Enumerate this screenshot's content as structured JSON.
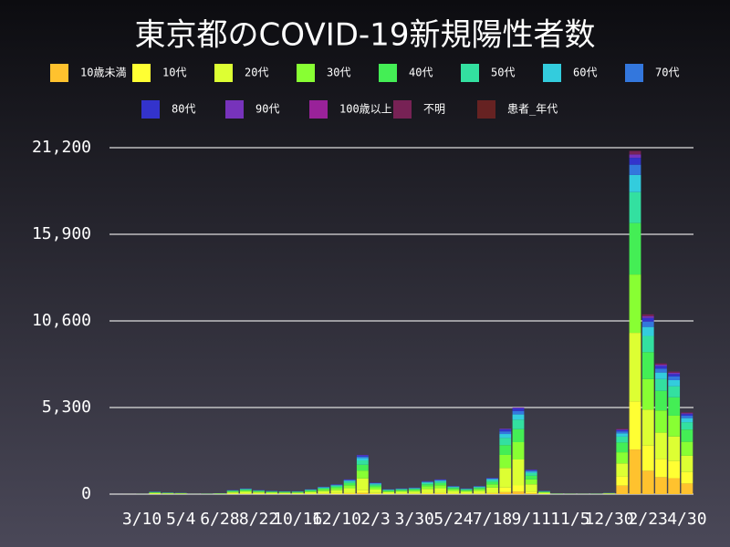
{
  "chart_data": {
    "type": "stacked_bar",
    "title": "東京都のCOVID-19新規陽性者数",
    "categories": [
      null,
      null,
      "3/10",
      null,
      null,
      "5/4",
      null,
      null,
      "6/28",
      null,
      null,
      "8/22",
      null,
      null,
      "10/16",
      null,
      null,
      "12/10",
      null,
      null,
      "2/3",
      null,
      null,
      "3/30",
      null,
      null,
      "5/24",
      null,
      null,
      "7/18",
      null,
      null,
      "9/11",
      null,
      null,
      "11/5",
      null,
      null,
      "12/30",
      null,
      null,
      "2/23",
      null,
      null,
      "4/30"
    ],
    "ylim": [
      0,
      21200
    ],
    "yticks": [
      0,
      {
        "value": 5300,
        "label": "5,300"
      },
      {
        "value": 10600,
        "label": "10,600"
      },
      {
        "value": 15900,
        "label": "15,900"
      },
      {
        "value": 21200,
        "label": "21,200"
      }
    ],
    "grid": true,
    "series": [
      {
        "name": "10歳未満",
        "color": "#ffc22e",
        "values": [
          0,
          0,
          0,
          5,
          3,
          2,
          0,
          1,
          2,
          8,
          10,
          8,
          6,
          5,
          5,
          9,
          13,
          18,
          27,
          72,
          21,
          9,
          10,
          12,
          24,
          27,
          15,
          10,
          15,
          30,
          120,
          159,
          45,
          6,
          1,
          1,
          1,
          1,
          10,
          520,
          2730,
          1430,
          1040,
          975,
          650
        ]
      },
      {
        "name": "10代",
        "color": "#ffff33",
        "values": [
          0,
          0,
          1,
          10,
          7,
          6,
          1,
          2,
          4,
          18,
          25,
          18,
          14,
          13,
          13,
          21,
          32,
          42,
          63,
          168,
          49,
          21,
          25,
          28,
          56,
          63,
          35,
          25,
          35,
          70,
          280,
          371,
          105,
          14,
          3,
          2,
          1,
          2,
          11,
          560,
          2940,
          1540,
          1120,
          1050,
          700
        ]
      },
      {
        "name": "20代",
        "color": "#ddff33",
        "values": [
          0,
          1,
          3,
          45,
          30,
          24,
          3,
          9,
          18,
          75,
          105,
          75,
          60,
          54,
          54,
          90,
          135,
          180,
          270,
          720,
          210,
          90,
          105,
          120,
          240,
          270,
          150,
          105,
          150,
          300,
          1200,
          1590,
          450,
          60,
          12,
          8,
          6,
          9,
          16,
          800,
          4200,
          2200,
          1600,
          1500,
          1000
        ]
      },
      {
        "name": "30代",
        "color": "#88ff33",
        "values": [
          0,
          1,
          2,
          30,
          20,
          16,
          2,
          6,
          12,
          50,
          70,
          50,
          40,
          36,
          36,
          60,
          90,
          120,
          180,
          480,
          140,
          60,
          70,
          80,
          160,
          180,
          100,
          70,
          100,
          200,
          800,
          1060,
          300,
          40,
          8,
          5,
          4,
          6,
          14,
          680,
          3570,
          1870,
          1360,
          1275,
          850
        ]
      },
      {
        "name": "40代",
        "color": "#44ee55",
        "values": [
          0,
          0,
          1,
          22,
          15,
          12,
          1,
          5,
          9,
          37,
          52,
          37,
          30,
          27,
          27,
          45,
          68,
          90,
          135,
          360,
          105,
          45,
          52,
          60,
          120,
          135,
          75,
          52,
          75,
          150,
          600,
          795,
          225,
          30,
          6,
          4,
          3,
          5,
          12,
          600,
          3150,
          1650,
          1200,
          1125,
          750
        ]
      },
      {
        "name": "50代",
        "color": "#33e0a0",
        "values": [
          0,
          0,
          1,
          17,
          11,
          9,
          1,
          3,
          7,
          27,
          39,
          27,
          22,
          20,
          20,
          33,
          50,
          66,
          99,
          264,
          77,
          33,
          39,
          44,
          88,
          99,
          55,
          39,
          55,
          110,
          440,
          583,
          165,
          22,
          4,
          3,
          2,
          3,
          7,
          360,
          1890,
          990,
          720,
          675,
          450
        ]
      },
      {
        "name": "60代",
        "color": "#33ccdd",
        "values": [
          0,
          0,
          1,
          9,
          6,
          5,
          1,
          2,
          4,
          15,
          21,
          15,
          12,
          11,
          11,
          18,
          27,
          36,
          54,
          144,
          42,
          18,
          21,
          24,
          48,
          54,
          30,
          21,
          30,
          60,
          240,
          318,
          90,
          12,
          2,
          1,
          1,
          2,
          4,
          200,
          1050,
          550,
          400,
          375,
          250
        ]
      },
      {
        "name": "70代",
        "color": "#3377dd",
        "values": [
          0,
          0,
          1,
          6,
          4,
          3,
          1,
          1,
          2,
          10,
          14,
          10,
          8,
          7,
          7,
          12,
          18,
          24,
          36,
          96,
          28,
          12,
          14,
          16,
          32,
          36,
          20,
          14,
          20,
          40,
          160,
          212,
          60,
          8,
          2,
          1,
          1,
          1,
          2,
          120,
          630,
          330,
          240,
          225,
          150
        ]
      },
      {
        "name": "80代",
        "color": "#3333cc",
        "values": [
          0,
          0,
          0,
          5,
          3,
          2,
          0,
          1,
          2,
          8,
          10,
          8,
          6,
          5,
          5,
          9,
          13,
          18,
          27,
          72,
          21,
          9,
          10,
          12,
          24,
          27,
          15,
          10,
          15,
          30,
          120,
          159,
          45,
          6,
          1,
          0,
          1,
          1,
          2,
          80,
          420,
          220,
          160,
          150,
          100
        ]
      },
      {
        "name": "90代",
        "color": "#7733bb",
        "values": [
          0,
          0,
          0,
          1,
          1,
          1,
          0,
          0,
          0,
          2,
          4,
          2,
          2,
          2,
          2,
          3,
          4,
          6,
          9,
          24,
          7,
          3,
          4,
          4,
          8,
          9,
          5,
          4,
          5,
          10,
          40,
          53,
          15,
          2,
          1,
          0,
          0,
          0,
          1,
          40,
          210,
          110,
          80,
          75,
          50
        ]
      },
      {
        "name": "100歳以上",
        "color": "#992299",
        "values": [
          0,
          0,
          0,
          0,
          0,
          0,
          0,
          0,
          0,
          0,
          0,
          0,
          0,
          0,
          0,
          0,
          0,
          0,
          0,
          0,
          0,
          0,
          0,
          0,
          0,
          0,
          0,
          0,
          0,
          0,
          0,
          0,
          0,
          0,
          0,
          0,
          0,
          0,
          0,
          0,
          2,
          1,
          1,
          1,
          0
        ]
      },
      {
        "name": "不明",
        "color": "#772255",
        "values": [
          0,
          0,
          0,
          0,
          0,
          0,
          0,
          0,
          0,
          0,
          0,
          0,
          0,
          0,
          0,
          0,
          0,
          0,
          0,
          0,
          0,
          0,
          0,
          0,
          0,
          0,
          0,
          0,
          0,
          0,
          0,
          0,
          0,
          0,
          0,
          0,
          0,
          0,
          1,
          40,
          210,
          110,
          80,
          75,
          50
        ]
      },
      {
        "name": "患者_年代",
        "color": "#662222",
        "values": [
          0,
          0,
          0,
          0,
          0,
          0,
          0,
          0,
          0,
          0,
          0,
          0,
          0,
          0,
          0,
          0,
          0,
          0,
          0,
          0,
          0,
          0,
          0,
          0,
          0,
          0,
          0,
          0,
          0,
          0,
          0,
          0,
          0,
          0,
          0,
          0,
          0,
          0,
          0,
          0,
          0,
          0,
          0,
          0,
          0
        ]
      }
    ]
  }
}
